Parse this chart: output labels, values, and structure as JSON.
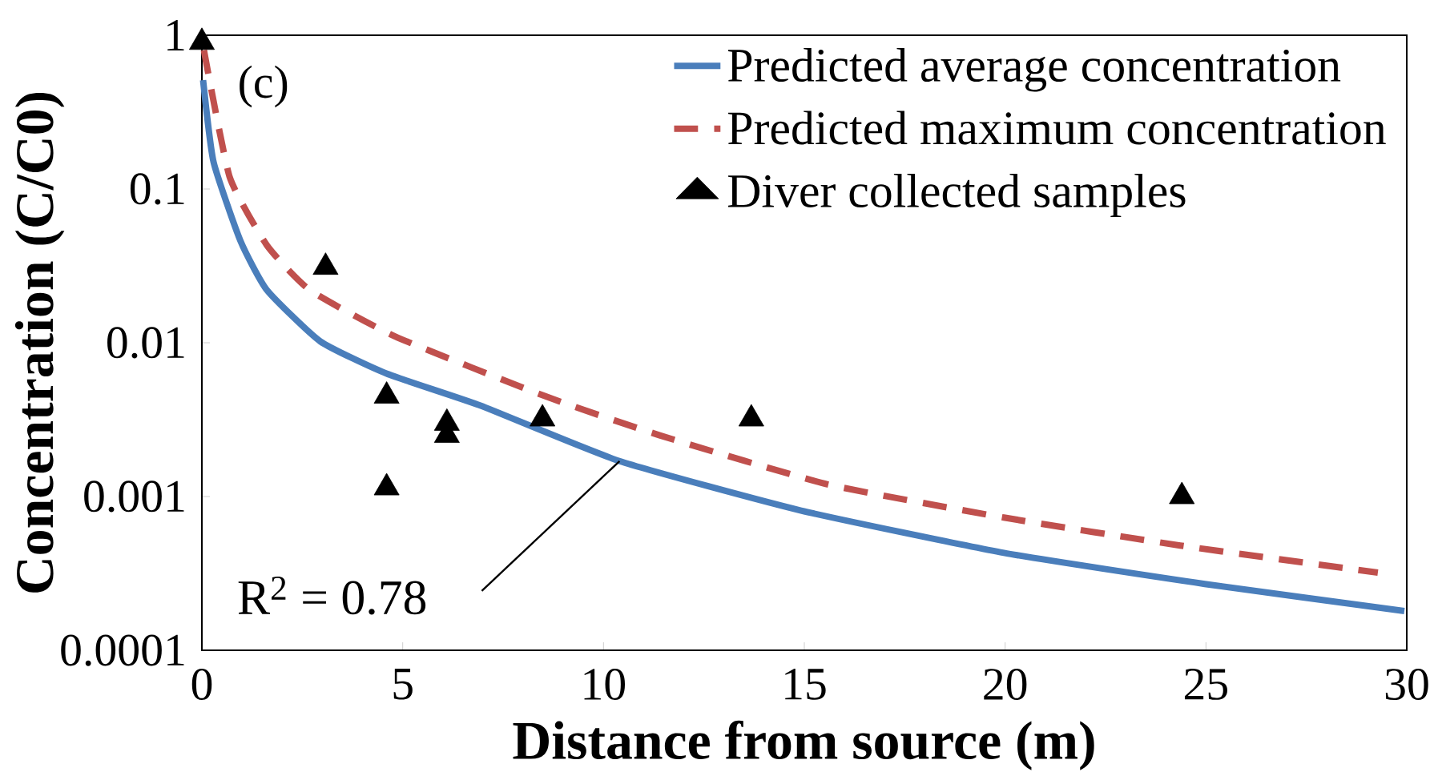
{
  "chart_data": {
    "type": "line",
    "xlabel": "Distance from source (m)",
    "ylabel": "Concentration (C/C0)",
    "log": "y",
    "xlim": [
      0,
      30
    ],
    "ylim": [
      0.0001,
      1
    ],
    "xticks": [
      0,
      5,
      10,
      15,
      20,
      25,
      30
    ],
    "yticks": [
      0.0001,
      0.001,
      0.01,
      0.1,
      1
    ],
    "legend": "top right",
    "grid": false,
    "annotations": [
      "(c)",
      {
        "text": "R$^{2}$ = 0.78",
        "x": 10.4,
        "y": 0.0017
      }
    ],
    "series": [
      {
        "name": "Predicted average concentration",
        "color": "#4a7ebb",
        "line_style": "solid",
        "x": [
          0.03,
          0.29,
          0.96,
          1.62,
          2.95,
          4.6,
          6.94,
          10.4,
          14.92,
          19.97,
          24.97,
          29.94
        ],
        "values": [
          0.51,
          0.15,
          0.046,
          0.022,
          0.0102,
          0.0063,
          0.0039,
          0.0017,
          0.00081,
          0.00043,
          0.00027,
          0.00018
        ]
      },
      {
        "name": "Predicted maximum concentration",
        "color": "#c0504d",
        "line_style": "dashed",
        "x": [
          0.05,
          0.69,
          1.62,
          2.69,
          4.81,
          8.54,
          11.4,
          15.58,
          19.97,
          24.36,
          29.28
        ],
        "values": [
          0.8,
          0.12,
          0.043,
          0.022,
          0.011,
          0.0045,
          0.0025,
          0.0012,
          0.00073,
          0.00048,
          0.00032
        ]
      },
      {
        "name": "Diver collected samples",
        "type": "scatter",
        "color": "#000000",
        "marker": "triangle",
        "x": [
          0,
          3.08,
          4.6,
          4.6,
          6.1,
          6.1,
          8.48,
          13.68,
          24.4
        ],
        "values": [
          0.9,
          0.031,
          0.0045,
          0.00114,
          0.003,
          0.0025,
          0.0032,
          0.0032,
          0.001
        ]
      }
    ]
  }
}
